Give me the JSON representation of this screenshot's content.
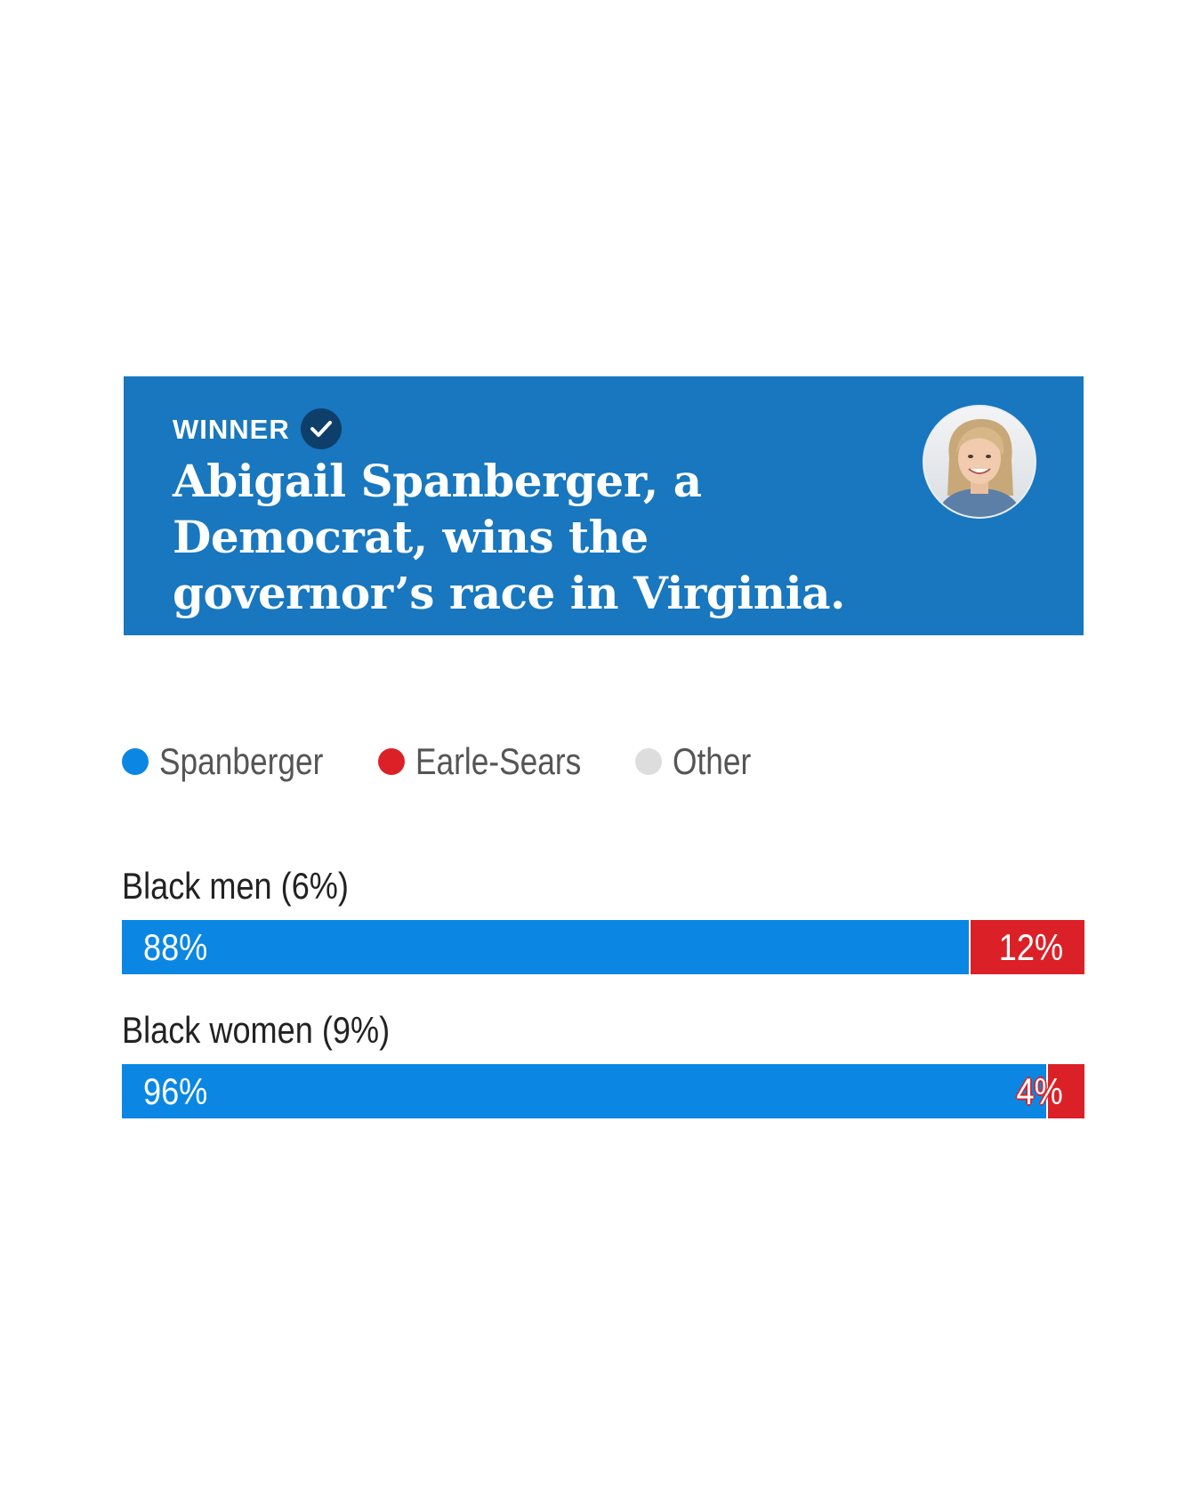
{
  "banner": {
    "winner_label": "WINNER",
    "headline": "Abigail Spanberger, a Democrat, wins the governor’s race in Virginia.",
    "icons": [
      "check-icon",
      "candidate-avatar"
    ],
    "colors": {
      "background": "#1877be",
      "badge": "#0d3f6a"
    }
  },
  "chart_data": {
    "type": "bar",
    "stacked": true,
    "orientation": "horizontal",
    "legend": {
      "placement": "top-left",
      "entries": [
        {
          "name": "Spanberger",
          "color": "#0b87e3"
        },
        {
          "name": "Earle-Sears",
          "color": "#db2127"
        },
        {
          "name": "Other",
          "color": "#dddddd"
        }
      ]
    },
    "categories": [
      "Black men (6%)",
      "Black women (9%)"
    ],
    "series": [
      {
        "name": "Spanberger",
        "values": [
          88,
          96
        ],
        "labels": [
          "88%",
          "96%"
        ]
      },
      {
        "name": "Earle-Sears",
        "values": [
          12,
          4
        ],
        "labels": [
          "12%",
          "4%"
        ]
      }
    ],
    "xlim": [
      0,
      100
    ]
  }
}
